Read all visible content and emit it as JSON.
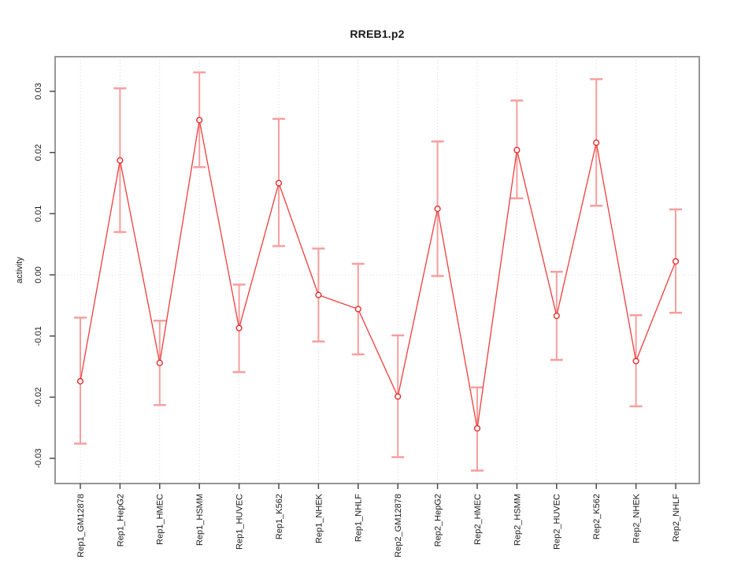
{
  "chart_data": {
    "type": "line",
    "title": "RREB1.p2",
    "xlabel": "",
    "ylabel": "activity",
    "categories": [
      "Rep1_GM12878",
      "Rep1_HepG2",
      "Rep1_HMEC",
      "Rep1_HSMM",
      "Rep1_HUVEC",
      "Rep1_K562",
      "Rep1_NHEK",
      "Rep1_NHLF",
      "Rep2_GM12878",
      "Rep2_HepG2",
      "Rep2_HMEC",
      "Rep2_HSMM",
      "Rep2_HUVEC",
      "Rep2_K562",
      "Rep2_NHEK",
      "Rep2_NHLF"
    ],
    "series": [
      {
        "name": "activity",
        "values": [
          -0.0174,
          0.0187,
          -0.0144,
          0.0253,
          -0.0087,
          0.015,
          -0.0033,
          -0.0056,
          -0.0199,
          0.0108,
          -0.0251,
          0.0204,
          -0.0067,
          0.0216,
          -0.0141,
          0.0022
        ],
        "error_upper": [
          -0.007,
          0.0305,
          -0.0075,
          0.0331,
          -0.0016,
          0.0255,
          0.0043,
          0.0018,
          -0.0099,
          0.0218,
          -0.0184,
          0.0285,
          0.0005,
          0.032,
          -0.0066,
          0.0107
        ],
        "error_lower": [
          -0.0276,
          0.007,
          -0.0213,
          0.0176,
          -0.0159,
          0.0047,
          -0.0109,
          -0.013,
          -0.0298,
          -0.0002,
          -0.032,
          0.0125,
          -0.0139,
          0.0113,
          -0.0215,
          -0.0062
        ]
      }
    ],
    "ylim": [
      -0.0342,
      0.0357
    ],
    "yticks": {
      "values": [
        -0.03,
        -0.02,
        -0.01,
        0,
        0.01,
        0.02,
        0.03
      ],
      "labels": [
        "-0.03",
        "-0.02",
        "-0.01",
        "0.00",
        "0.01",
        "0.02",
        "0.03"
      ]
    },
    "grid": "vertical-dotted-plus-zero-line",
    "legend_position": "none",
    "marker": "open-circle",
    "colors": {
      "line": "#f03c3c",
      "marker_stroke": "#e22d2d",
      "error_bar": "#f79e9e",
      "grid": "#d9d9d9",
      "frame": "#979797",
      "tick": "#4a4a4a",
      "text": "#1a1a1a",
      "background": "#ffffff"
    }
  }
}
